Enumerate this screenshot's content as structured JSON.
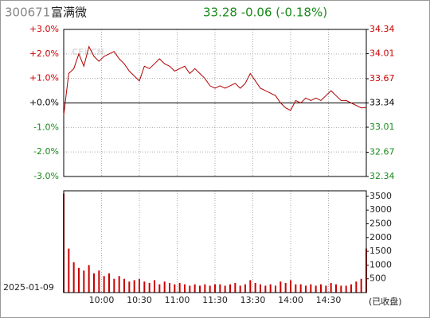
{
  "header": {
    "code": "300671",
    "name": "富满微",
    "quote": "33.28 -0.06 (-0.18%)"
  },
  "date": "2025-01-09",
  "status": "(已收盘)",
  "chart_data": [
    {
      "type": "line",
      "watermark": "CFi.CN",
      "x": [
        "09:30",
        "09:34",
        "09:38",
        "09:42",
        "09:46",
        "09:50",
        "09:54",
        "09:58",
        "10:02",
        "10:06",
        "10:10",
        "10:14",
        "10:18",
        "10:22",
        "10:26",
        "10:30",
        "10:34",
        "10:38",
        "10:42",
        "10:46",
        "10:50",
        "10:54",
        "10:58",
        "11:02",
        "11:06",
        "11:10",
        "11:14",
        "11:18",
        "11:22",
        "11:26",
        "11:30",
        "13:04",
        "13:08",
        "13:12",
        "13:16",
        "13:20",
        "13:24",
        "13:28",
        "13:32",
        "13:36",
        "13:40",
        "13:44",
        "13:48",
        "13:52",
        "13:56",
        "14:00",
        "14:04",
        "14:08",
        "14:12",
        "14:16",
        "14:20",
        "14:24",
        "14:28",
        "14:32",
        "14:36",
        "14:40",
        "14:44",
        "14:48",
        "14:52",
        "14:56",
        "15:00"
      ],
      "series": [
        {
          "color": "#b00000",
          "values": [
            -0.5,
            1.2,
            1.4,
            2.0,
            1.5,
            2.3,
            1.9,
            1.7,
            1.9,
            2.0,
            2.1,
            1.8,
            1.6,
            1.3,
            1.1,
            0.9,
            1.5,
            1.4,
            1.6,
            1.8,
            1.6,
            1.5,
            1.3,
            1.4,
            1.5,
            1.2,
            1.4,
            1.2,
            1.0,
            0.7,
            0.6,
            0.7,
            0.6,
            0.7,
            0.8,
            0.6,
            0.8,
            1.2,
            0.9,
            0.6,
            0.5,
            0.4,
            0.3,
            0.0,
            -0.2,
            -0.3,
            0.1,
            0.0,
            0.2,
            0.1,
            0.2,
            0.1,
            0.3,
            0.5,
            0.3,
            0.1,
            0.1,
            0.0,
            -0.1,
            -0.2,
            -0.18
          ]
        }
      ],
      "xtick_labels": [
        "10:00",
        "10:30",
        "11:00",
        "11:30",
        "13:30",
        "14:00",
        "14:30"
      ],
      "ylim": [
        -3,
        3
      ],
      "yticks": [
        {
          "value": 3,
          "label": "+3.0%"
        },
        {
          "value": 2,
          "label": "+2.0%"
        },
        {
          "value": 1,
          "label": "+1.0%"
        },
        {
          "value": 0,
          "label": "+0.0%"
        },
        {
          "value": -1,
          "label": "-1.0%"
        },
        {
          "value": -2,
          "label": "-2.0%"
        },
        {
          "value": -3,
          "label": "-3.0%"
        }
      ],
      "y2lim": [
        32.34,
        34.34
      ],
      "y2ticks": [
        34.34,
        34.01,
        33.67,
        33.34,
        33.01,
        32.67,
        32.34
      ],
      "grid": true
    },
    {
      "type": "bar",
      "color": "#cc0000",
      "values": [
        3600,
        1600,
        1100,
        900,
        800,
        1000,
        700,
        800,
        600,
        700,
        500,
        600,
        500,
        400,
        450,
        500,
        400,
        350,
        450,
        300,
        400,
        350,
        300,
        350,
        300,
        250,
        300,
        250,
        300,
        250,
        300,
        300,
        250,
        300,
        350,
        250,
        300,
        450,
        350,
        300,
        250,
        300,
        250,
        400,
        350,
        450,
        300,
        300,
        250,
        300,
        250,
        300,
        250,
        350,
        300,
        250,
        250,
        300,
        400,
        500,
        1600
      ],
      "ylim": [
        0,
        3700
      ],
      "yticks": [
        500,
        1000,
        1500,
        2000,
        2500,
        3000,
        3500
      ],
      "grid": true
    }
  ]
}
